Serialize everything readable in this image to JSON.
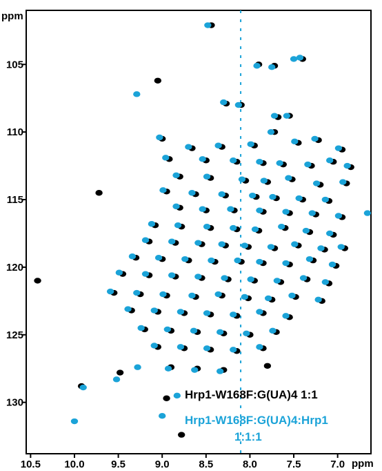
{
  "chart_data": {
    "type": "scatter",
    "title": "",
    "xlabel": "ppm",
    "ylabel": "ppm",
    "x_reversed": true,
    "y_reversed": true,
    "xlim": [
      10.55,
      6.62
    ],
    "ylim": [
      101.0,
      133.8
    ],
    "x_ticks": [
      {
        "value": 10.5,
        "label": "10.5"
      },
      {
        "value": 10.0,
        "label": "10.0"
      },
      {
        "value": 9.5,
        "label": "9.5"
      },
      {
        "value": 9.0,
        "label": "9.0"
      },
      {
        "value": 8.5,
        "label": "8.5"
      },
      {
        "value": 8.0,
        "label": "8.0"
      },
      {
        "value": 7.5,
        "label": "7.5"
      },
      {
        "value": 7.0,
        "label": "7.0"
      }
    ],
    "y_ticks": [
      {
        "value": 105,
        "label": "105"
      },
      {
        "value": 110,
        "label": "110"
      },
      {
        "value": 115,
        "label": "115"
      },
      {
        "value": 120,
        "label": "120"
      },
      {
        "value": 125,
        "label": "125"
      },
      {
        "value": 130,
        "label": "130"
      }
    ],
    "series": [
      {
        "name": "Hrp1-W168F:G(UA)4 1:1",
        "color": "#000000",
        "points": [
          [
            8.44,
            102.1
          ],
          [
            7.9,
            105.0
          ],
          [
            7.72,
            105.1
          ],
          [
            7.4,
            104.6
          ],
          [
            9.05,
            106.2
          ],
          [
            8.27,
            107.9
          ],
          [
            8.1,
            108.0
          ],
          [
            7.68,
            108.9
          ],
          [
            7.55,
            108.8
          ],
          [
            9.0,
            110.5
          ],
          [
            8.66,
            111.2
          ],
          [
            8.32,
            111.1
          ],
          [
            7.95,
            111.0
          ],
          [
            7.72,
            110.0
          ],
          [
            7.45,
            110.8
          ],
          [
            7.22,
            110.6
          ],
          [
            6.95,
            111.3
          ],
          [
            8.92,
            112.0
          ],
          [
            8.5,
            112.1
          ],
          [
            8.15,
            112.2
          ],
          [
            7.85,
            112.3
          ],
          [
            7.62,
            112.4
          ],
          [
            7.3,
            112.5
          ],
          [
            7.05,
            112.2
          ],
          [
            6.85,
            112.6
          ],
          [
            8.8,
            113.3
          ],
          [
            8.45,
            113.4
          ],
          [
            8.05,
            113.6
          ],
          [
            7.8,
            113.7
          ],
          [
            7.52,
            113.5
          ],
          [
            7.2,
            113.9
          ],
          [
            6.9,
            113.8
          ],
          [
            8.95,
            114.4
          ],
          [
            8.62,
            114.6
          ],
          [
            8.28,
            114.7
          ],
          [
            7.93,
            114.8
          ],
          [
            7.7,
            114.9
          ],
          [
            7.4,
            115.0
          ],
          [
            7.1,
            115.1
          ],
          [
            8.8,
            115.6
          ],
          [
            8.5,
            115.8
          ],
          [
            8.18,
            115.8
          ],
          [
            7.85,
            115.9
          ],
          [
            7.55,
            116.0
          ],
          [
            7.25,
            116.1
          ],
          [
            6.95,
            116.3
          ],
          [
            9.08,
            116.9
          ],
          [
            8.78,
            117.0
          ],
          [
            8.45,
            117.1
          ],
          [
            8.15,
            117.2
          ],
          [
            7.9,
            117.3
          ],
          [
            7.6,
            117.1
          ],
          [
            7.32,
            117.4
          ],
          [
            7.05,
            117.6
          ],
          [
            9.15,
            118.1
          ],
          [
            8.85,
            118.2
          ],
          [
            8.55,
            118.3
          ],
          [
            8.28,
            118.4
          ],
          [
            8.02,
            118.5
          ],
          [
            7.72,
            118.6
          ],
          [
            7.45,
            118.4
          ],
          [
            7.15,
            118.7
          ],
          [
            6.92,
            118.6
          ],
          [
            9.3,
            119.3
          ],
          [
            9.0,
            119.4
          ],
          [
            8.7,
            119.5
          ],
          [
            8.4,
            119.6
          ],
          [
            8.1,
            119.6
          ],
          [
            7.85,
            119.7
          ],
          [
            7.55,
            119.8
          ],
          [
            7.28,
            119.5
          ],
          [
            7.02,
            119.9
          ],
          [
            9.45,
            120.5
          ],
          [
            9.15,
            120.6
          ],
          [
            8.85,
            120.7
          ],
          [
            8.55,
            120.8
          ],
          [
            8.25,
            120.9
          ],
          [
            7.95,
            121.0
          ],
          [
            7.65,
            121.1
          ],
          [
            7.35,
            120.9
          ],
          [
            7.1,
            121.2
          ],
          [
            9.55,
            121.9
          ],
          [
            9.25,
            122.0
          ],
          [
            8.95,
            122.1
          ],
          [
            8.62,
            122.2
          ],
          [
            8.32,
            122.1
          ],
          [
            8.02,
            122.3
          ],
          [
            7.75,
            122.4
          ],
          [
            7.48,
            122.2
          ],
          [
            7.18,
            122.5
          ],
          [
            9.35,
            123.2
          ],
          [
            9.05,
            123.3
          ],
          [
            8.75,
            123.4
          ],
          [
            8.45,
            123.5
          ],
          [
            8.15,
            123.6
          ],
          [
            7.85,
            123.4
          ],
          [
            7.55,
            123.7
          ],
          [
            9.2,
            124.6
          ],
          [
            8.9,
            124.7
          ],
          [
            8.6,
            124.8
          ],
          [
            8.3,
            124.9
          ],
          [
            8.0,
            125.0
          ],
          [
            7.7,
            124.8
          ],
          [
            9.05,
            125.9
          ],
          [
            8.75,
            126.0
          ],
          [
            8.45,
            126.1
          ],
          [
            8.15,
            126.2
          ],
          [
            7.85,
            126.0
          ],
          [
            9.48,
            127.8
          ],
          [
            8.9,
            127.4
          ],
          [
            8.6,
            127.5
          ],
          [
            8.3,
            127.6
          ],
          [
            7.8,
            127.3
          ],
          [
            9.92,
            128.8
          ],
          [
            8.95,
            129.7
          ],
          [
            8.78,
            132.4
          ],
          [
            10.42,
            121.0
          ],
          [
            9.72,
            114.5
          ]
        ]
      },
      {
        "name": "Hrp1-W168F:G(UA)4:Hrp1\n1:1:1",
        "color": "#1ba3d8",
        "points": [
          [
            8.48,
            102.1
          ],
          [
            7.92,
            105.1
          ],
          [
            7.75,
            105.2
          ],
          [
            7.43,
            104.5
          ],
          [
            9.29,
            107.2
          ],
          [
            8.3,
            107.8
          ],
          [
            8.13,
            108.0
          ],
          [
            7.72,
            108.8
          ],
          [
            7.58,
            108.8
          ],
          [
            9.03,
            110.4
          ],
          [
            8.7,
            111.1
          ],
          [
            8.36,
            111.0
          ],
          [
            7.99,
            110.9
          ],
          [
            7.76,
            110.0
          ],
          [
            7.49,
            110.7
          ],
          [
            7.26,
            110.5
          ],
          [
            6.99,
            111.2
          ],
          [
            8.96,
            111.9
          ],
          [
            8.54,
            112.0
          ],
          [
            8.19,
            112.1
          ],
          [
            7.89,
            112.2
          ],
          [
            7.66,
            112.3
          ],
          [
            7.34,
            112.4
          ],
          [
            7.09,
            112.1
          ],
          [
            6.89,
            112.5
          ],
          [
            8.84,
            113.2
          ],
          [
            8.49,
            113.3
          ],
          [
            8.09,
            113.5
          ],
          [
            7.84,
            113.6
          ],
          [
            7.56,
            113.4
          ],
          [
            7.24,
            113.8
          ],
          [
            6.94,
            113.7
          ],
          [
            8.99,
            114.3
          ],
          [
            8.66,
            114.5
          ],
          [
            8.32,
            114.6
          ],
          [
            7.97,
            114.7
          ],
          [
            7.74,
            114.8
          ],
          [
            7.44,
            114.9
          ],
          [
            7.14,
            115.0
          ],
          [
            8.84,
            115.5
          ],
          [
            8.54,
            115.7
          ],
          [
            8.22,
            115.7
          ],
          [
            7.89,
            115.8
          ],
          [
            7.59,
            115.9
          ],
          [
            7.29,
            116.0
          ],
          [
            6.99,
            116.2
          ],
          [
            6.66,
            116.0
          ],
          [
            9.12,
            116.8
          ],
          [
            8.82,
            116.9
          ],
          [
            8.49,
            117.0
          ],
          [
            8.19,
            117.1
          ],
          [
            7.94,
            117.2
          ],
          [
            7.64,
            117.0
          ],
          [
            7.36,
            117.3
          ],
          [
            7.09,
            117.5
          ],
          [
            9.19,
            118.0
          ],
          [
            8.89,
            118.1
          ],
          [
            8.59,
            118.2
          ],
          [
            8.32,
            118.3
          ],
          [
            8.06,
            118.4
          ],
          [
            7.76,
            118.5
          ],
          [
            7.49,
            118.3
          ],
          [
            7.19,
            118.6
          ],
          [
            6.96,
            118.5
          ],
          [
            9.34,
            119.2
          ],
          [
            9.04,
            119.3
          ],
          [
            8.74,
            119.4
          ],
          [
            8.44,
            119.5
          ],
          [
            8.14,
            119.5
          ],
          [
            7.89,
            119.6
          ],
          [
            7.59,
            119.7
          ],
          [
            7.32,
            119.4
          ],
          [
            7.06,
            119.8
          ],
          [
            9.49,
            120.4
          ],
          [
            9.19,
            120.5
          ],
          [
            8.89,
            120.6
          ],
          [
            8.59,
            120.7
          ],
          [
            8.29,
            120.8
          ],
          [
            7.99,
            120.9
          ],
          [
            7.69,
            121.0
          ],
          [
            7.39,
            120.8
          ],
          [
            7.14,
            121.1
          ],
          [
            9.59,
            121.8
          ],
          [
            9.29,
            121.9
          ],
          [
            8.99,
            122.0
          ],
          [
            8.66,
            122.1
          ],
          [
            8.36,
            122.0
          ],
          [
            8.06,
            122.2
          ],
          [
            7.79,
            122.3
          ],
          [
            7.52,
            122.1
          ],
          [
            7.22,
            122.4
          ],
          [
            9.39,
            123.1
          ],
          [
            9.09,
            123.2
          ],
          [
            8.79,
            123.3
          ],
          [
            8.49,
            123.4
          ],
          [
            8.19,
            123.5
          ],
          [
            7.89,
            123.3
          ],
          [
            7.59,
            123.6
          ],
          [
            9.24,
            124.5
          ],
          [
            8.94,
            124.6
          ],
          [
            8.64,
            124.7
          ],
          [
            8.34,
            124.8
          ],
          [
            8.04,
            124.9
          ],
          [
            7.74,
            124.7
          ],
          [
            9.09,
            125.8
          ],
          [
            8.79,
            125.9
          ],
          [
            8.49,
            126.0
          ],
          [
            8.19,
            126.1
          ],
          [
            7.89,
            125.9
          ],
          [
            9.52,
            128.3
          ],
          [
            9.28,
            127.4
          ],
          [
            8.93,
            127.5
          ],
          [
            8.63,
            127.6
          ],
          [
            8.34,
            127.7
          ],
          [
            9.9,
            128.9
          ],
          [
            8.83,
            129.5
          ],
          [
            9.0,
            131.0
          ],
          [
            10.0,
            131.4
          ],
          [
            7.5,
            104.6
          ]
        ]
      }
    ],
    "grid": false,
    "legend_position": "bottom-right"
  }
}
